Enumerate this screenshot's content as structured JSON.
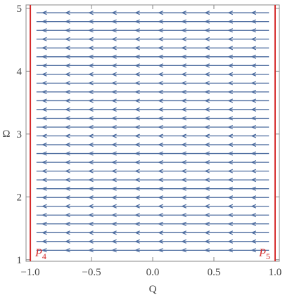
{
  "chart_data": {
    "type": "streamplot",
    "xlabel": "Q",
    "ylabel": "Ω",
    "xlim": [
      -1.035,
      1.035
    ],
    "ylim": [
      0.975,
      5.055
    ],
    "xticks": [
      {
        "value": -1,
        "label": "−1.0"
      },
      {
        "value": -0.5,
        "label": "−0.5"
      },
      {
        "value": 0,
        "label": "0.0"
      },
      {
        "value": 0.5,
        "label": "0.5"
      },
      {
        "value": 1,
        "label": "1.0"
      }
    ],
    "yticks": [
      1,
      2,
      3,
      4,
      5
    ],
    "streams": {
      "color": "#4a6a9e",
      "direction": "left",
      "x_range": [
        -0.95,
        0.95
      ],
      "arrow_x": [
        -0.9,
        -0.71,
        -0.52,
        -0.33,
        -0.14,
        0.05,
        0.24,
        0.43,
        0.62,
        0.81
      ],
      "y": [
        1.15,
        1.29,
        1.43,
        1.57,
        1.71,
        1.85,
        1.99,
        2.13,
        2.27,
        2.41,
        2.55,
        2.69,
        2.83,
        2.97,
        3.11,
        3.25,
        3.39,
        3.53,
        3.67,
        3.81,
        3.95,
        4.09,
        4.23,
        4.37,
        4.51,
        4.65,
        4.79,
        4.93
      ]
    },
    "vertical_lines": [
      {
        "x": -1,
        "color": "#d42a2a",
        "label": {
          "text": "P",
          "subscript": "4"
        }
      },
      {
        "x": 1,
        "color": "#d42a2a",
        "label": {
          "text": "P",
          "subscript": "5"
        }
      }
    ]
  }
}
